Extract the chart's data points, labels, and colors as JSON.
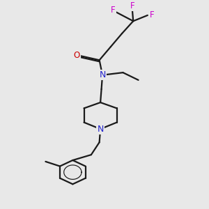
{
  "bg_color": "#e8e8e8",
  "bond_color": "#1a1a1a",
  "N_color": "#2222cc",
  "O_color": "#cc0000",
  "F_color": "#cc00cc",
  "line_width": 1.6,
  "figsize": [
    3.0,
    3.0
  ],
  "dpi": 100,
  "xlim": [
    0,
    10
  ],
  "ylim": [
    0,
    12
  ]
}
